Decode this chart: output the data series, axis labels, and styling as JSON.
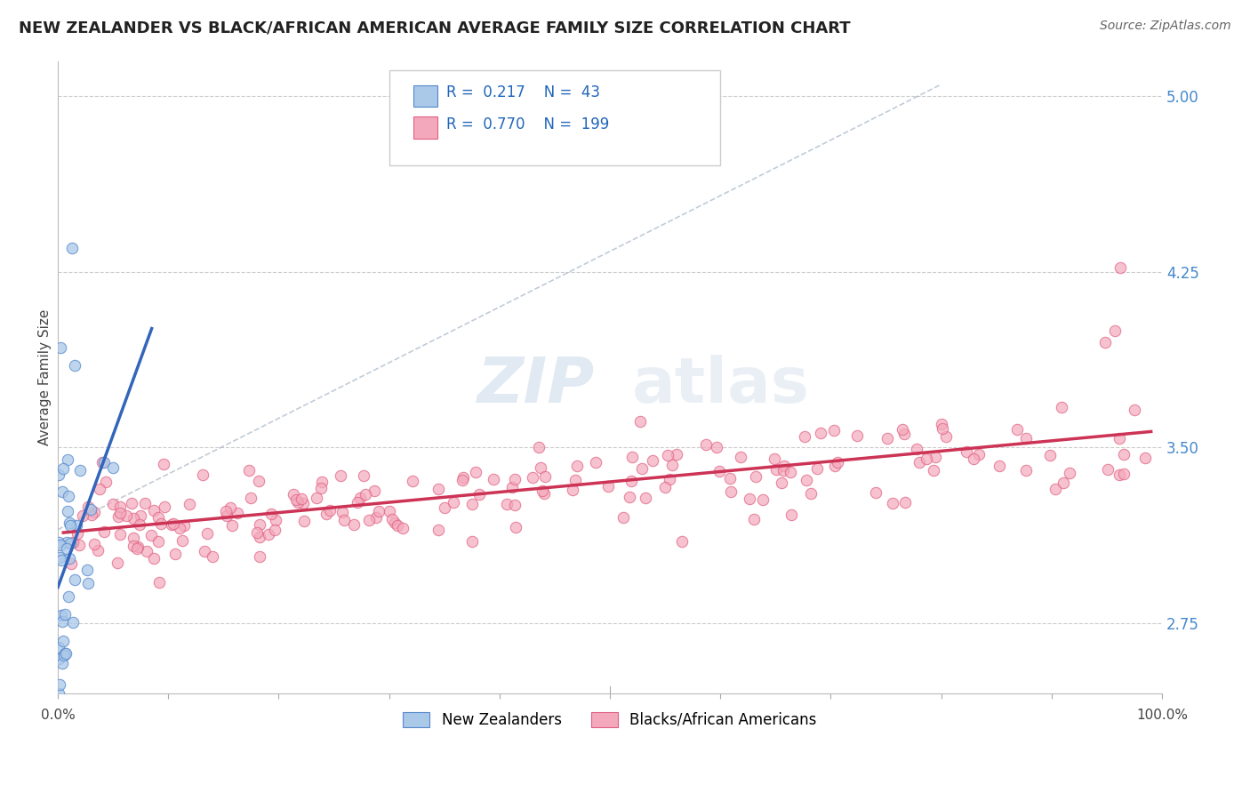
{
  "title": "NEW ZEALANDER VS BLACK/AFRICAN AMERICAN AVERAGE FAMILY SIZE CORRELATION CHART",
  "source": "Source: ZipAtlas.com",
  "ylabel": "Average Family Size",
  "xlim": [
    0,
    100
  ],
  "ylim": [
    2.45,
    5.15
  ],
  "yticks_right": [
    2.75,
    3.5,
    4.25,
    5.0
  ],
  "color_blue_fill": "#aac8e8",
  "color_blue_edge": "#5588cc",
  "color_pink_fill": "#f4a8bc",
  "color_pink_edge": "#e06080",
  "color_blue_line": "#3366bb",
  "color_pink_line": "#cc3355",
  "color_dash_line": "#aabbcc",
  "legend_label1": "New Zealanders",
  "legend_label2": "Blacks/African Americans",
  "watermark_zip": "ZIP",
  "watermark_atlas": "atlas"
}
